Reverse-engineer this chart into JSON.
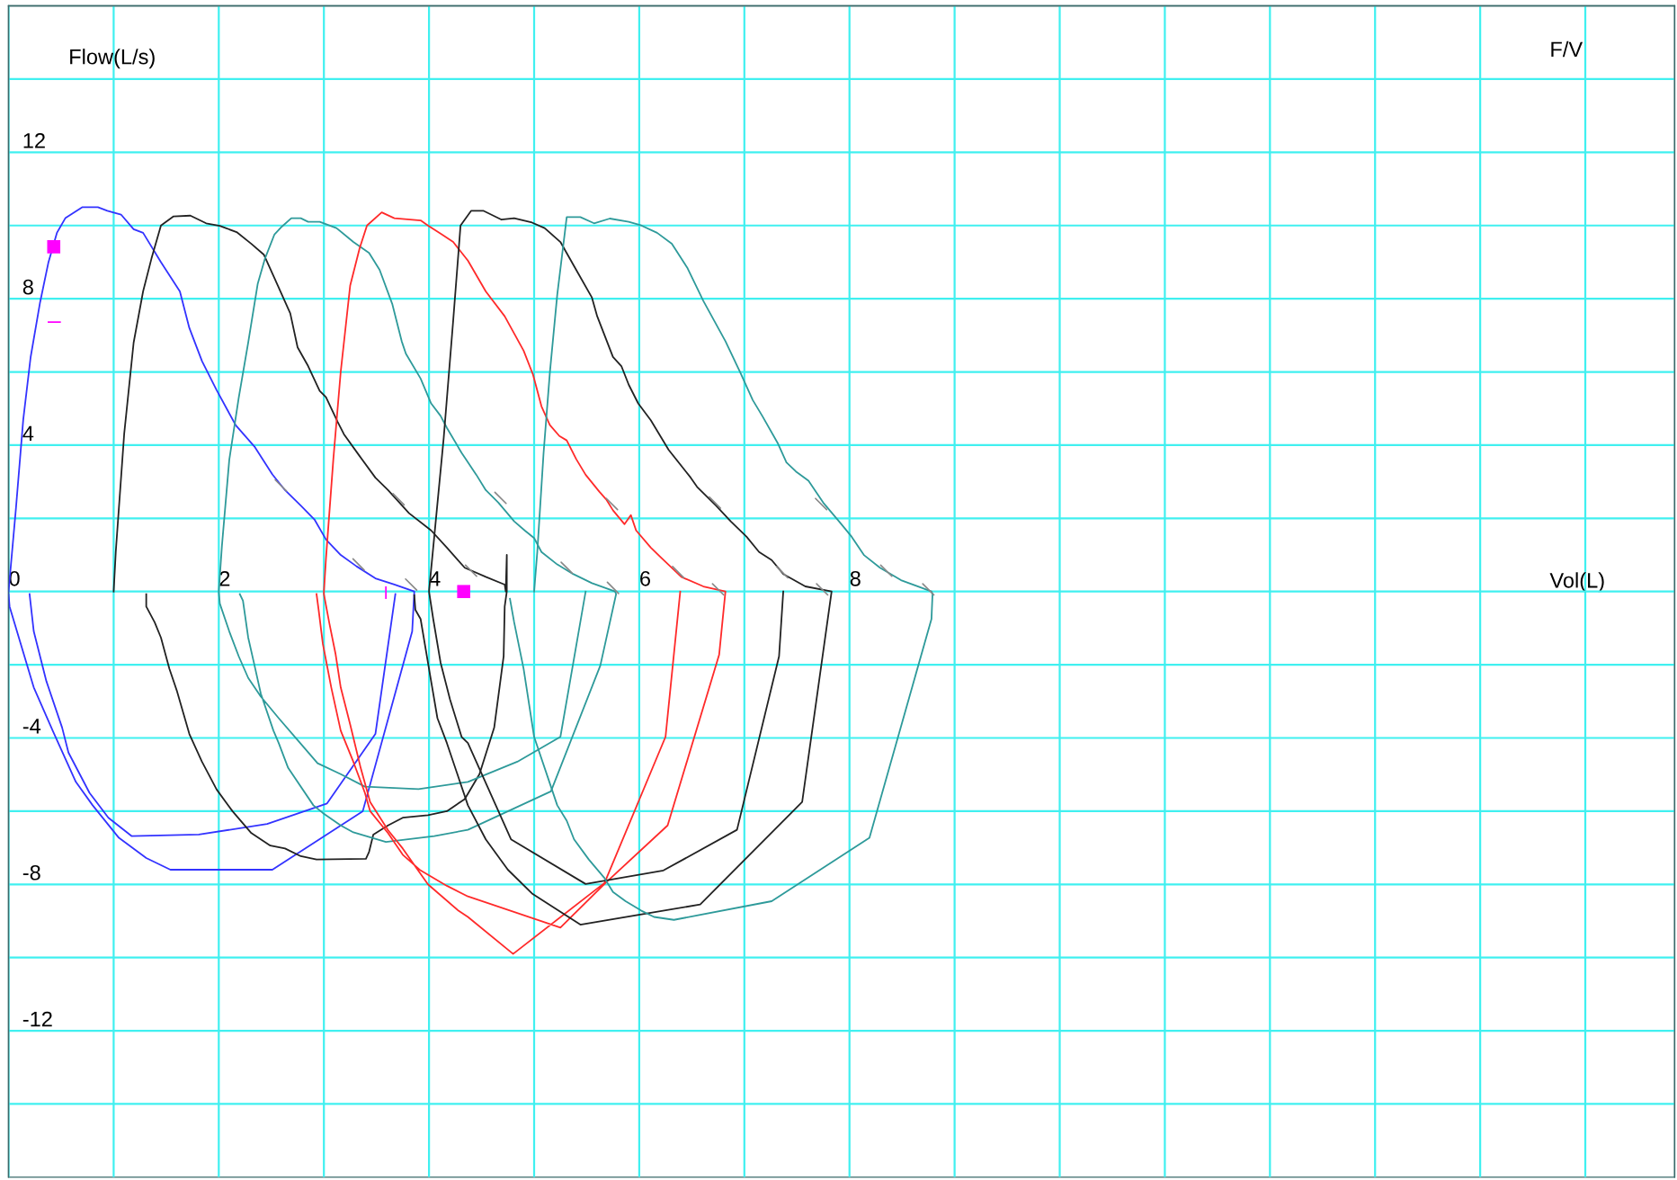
{
  "chart_data": {
    "type": "line",
    "title": "F/V",
    "xlabel": "Vol(L)",
    "ylabel": "Flow(L/s)",
    "xlim": [
      0,
      15.85
    ],
    "ylim": [
      -16,
      16
    ],
    "xticks": [
      0,
      {
        "value": 1,
        "label": null
      },
      2,
      {
        "value": 3,
        "label": null
      },
      4,
      {
        "value": 5,
        "label": null
      },
      6,
      {
        "value": 7,
        "label": null
      },
      8,
      {
        "value": 9,
        "label": null
      },
      {
        "value": 10,
        "label": null
      },
      {
        "value": 11,
        "label": null
      },
      {
        "value": 12,
        "label": null
      },
      {
        "value": 13,
        "label": null
      },
      {
        "value": 14,
        "label": null
      },
      {
        "value": 15,
        "label": null
      }
    ],
    "yticks": [
      {
        "value": -14,
        "label": null
      },
      {
        "value": -12,
        "label": "-12"
      },
      {
        "value": -10,
        "label": null
      },
      {
        "value": -8,
        "label": "-8"
      },
      {
        "value": -6,
        "label": null
      },
      {
        "value": -4,
        "label": "-4"
      },
      {
        "value": -2,
        "label": null
      },
      {
        "value": 0,
        "label": null
      },
      {
        "value": 2,
        "label": null
      },
      4,
      {
        "value": 6,
        "label": null
      },
      8,
      {
        "value": 10,
        "label": null
      },
      12,
      {
        "value": 14,
        "label": null
      }
    ],
    "grid": true,
    "line_style": "solid",
    "marker": "none",
    "series": [
      {
        "color": "#3333ff",
        "x": [
          0,
          0.07,
          0.14,
          0.21,
          0.3,
          0.38,
          0.46,
          0.54,
          0.7,
          0.85,
          0.94,
          1.07,
          1.19,
          1.28,
          1.45,
          1.63,
          1.72,
          1.84,
          1.98,
          2.16,
          2.34,
          2.51,
          2.63,
          2.78,
          2.91,
          3.02,
          3.16,
          3.31,
          3.49,
          3.67,
          3.86,
          3.84,
          3.37,
          2.51,
          1.54,
          1.31,
          1.05,
          0.8,
          0.64,
          0.42,
          0.24,
          0.01,
          0
        ],
        "values": [
          0,
          2.26,
          4.7,
          6.4,
          7.9,
          9.0,
          9.8,
          10.2,
          10.5,
          10.5,
          10.4,
          10.3,
          9.9,
          9.8,
          9.0,
          8.2,
          7.2,
          6.3,
          5.5,
          4.55,
          3.96,
          3.2,
          2.77,
          2.35,
          1.97,
          1.42,
          1.0,
          0.69,
          0.36,
          0.19,
          0,
          -1.09,
          -6.0,
          -7.6,
          -7.6,
          -7.28,
          -6.73,
          -5.84,
          -5.2,
          -3.8,
          -2.62,
          -0.41,
          -0.07
        ]
      },
      {
        "color": "#3333ff",
        "x": [
          0.2,
          0.24,
          0.36,
          0.51,
          0.57,
          0.77,
          0.95,
          1.17,
          1.81,
          2.46,
          3.03,
          3.49,
          3.68
        ],
        "values": [
          -0.07,
          -1.09,
          -2.45,
          -3.72,
          -4.4,
          -5.5,
          -6.18,
          -6.68,
          -6.64,
          -6.35,
          -5.79,
          -3.89,
          -0.07
        ]
      },
      {
        "color": "#222222",
        "x": [
          1.0,
          1.02,
          1.1,
          1.19,
          1.28,
          1.36,
          1.45,
          1.57,
          1.73,
          1.88,
          2.01,
          2.17,
          2.31,
          2.43,
          2.54,
          2.68,
          2.75,
          2.85,
          2.96,
          3.02,
          3.13,
          3.19,
          3.34,
          3.49,
          3.61,
          3.81,
          4.02,
          4.17,
          4.34,
          4.54,
          4.72,
          4.73,
          4.74,
          4.74,
          4.72,
          4.71,
          4.62,
          4.48,
          4.34,
          4.17,
          3.99,
          3.75,
          3.61,
          3.47,
          3.43,
          3.4,
          2.93,
          2.78,
          2.63,
          2.49,
          2.31,
          2.13,
          1.98,
          1.84,
          1.72,
          1.6,
          1.53,
          1.45,
          1.39,
          1.31,
          1.31
        ],
        "values": [
          0,
          1.08,
          4.3,
          6.8,
          8.2,
          9.1,
          10.0,
          10.25,
          10.27,
          10.06,
          9.99,
          9.82,
          9.5,
          9.2,
          8.5,
          7.6,
          6.67,
          6.16,
          5.48,
          5.31,
          4.64,
          4.3,
          3.7,
          3.11,
          2.77,
          2.14,
          1.67,
          1.2,
          0.65,
          0.4,
          0.19,
          0,
          1.0,
          0,
          -0.41,
          -1.77,
          -3.72,
          -4.99,
          -5.67,
          -6.0,
          -6.11,
          -6.18,
          -6.39,
          -6.64,
          -7.11,
          -7.3,
          -7.32,
          -7.23,
          -7.02,
          -6.94,
          -6.6,
          -6.0,
          -5.41,
          -4.65,
          -3.89,
          -2.7,
          -2.11,
          -1.26,
          -0.84,
          -0.41,
          -0.07
        ]
      },
      {
        "color": "#2e9a9a",
        "x": [
          5.49,
          5.25,
          4.84,
          4.37,
          3.9,
          3.39,
          3.16,
          2.94,
          2.75,
          2.57,
          2.4,
          2.28,
          2.19,
          2.1,
          2.01,
          2.0,
          2.03,
          2.1,
          2.19,
          2.28,
          2.37,
          2.44,
          2.53,
          2.6,
          2.69,
          2.78,
          2.85,
          2.96,
          3.12,
          3.28,
          3.43,
          3.53,
          3.65,
          3.74,
          3.78,
          3.92,
          4.02,
          4.11,
          4.17,
          4.31,
          4.45,
          4.54,
          4.66,
          4.81,
          4.91,
          5.0,
          5.07,
          5.22,
          5.37,
          5.55,
          5.77,
          5.78,
          5.63,
          5.16,
          4.37,
          4.05,
          3.59,
          3.28,
          3.16,
          2.99,
          2.9,
          2.66,
          2.57,
          2.52,
          2.4,
          2.34,
          2.28,
          2.23,
          2.2
        ],
        "values": [
          0,
          -3.97,
          -4.65,
          -5.2,
          -5.4,
          -5.33,
          -4.99,
          -4.69,
          -4.06,
          -3.46,
          -2.87,
          -2.36,
          -1.77,
          -1.09,
          -0.33,
          0,
          1.25,
          3.6,
          5.3,
          6.8,
          8.4,
          9.1,
          9.76,
          9.97,
          10.2,
          10.2,
          10.1,
          10.1,
          9.93,
          9.55,
          9.25,
          8.79,
          7.86,
          6.84,
          6.5,
          5.82,
          5.14,
          4.8,
          4.47,
          3.79,
          3.19,
          2.77,
          2.43,
          1.92,
          1.67,
          1.46,
          1.08,
          0.74,
          0.48,
          0.23,
          0,
          -0.07,
          -2.02,
          -5.46,
          -6.51,
          -6.68,
          -6.84,
          -6.58,
          -6.39,
          -6.05,
          -5.84,
          -4.82,
          -4.14,
          -3.8,
          -2.79,
          -2.02,
          -1.26,
          -0.25,
          -0.07
        ]
      },
      {
        "color": "#ff2a2a",
        "x": [
          6.39,
          6.25,
          5.67,
          4.8,
          4.37,
          4.28,
          3.99,
          3.75,
          3.61,
          3.44,
          3.35,
          3.25,
          3.16,
          3.11,
          3.05,
          3.0,
          3.0,
          3.02,
          3.09,
          3.16,
          3.25,
          3.34,
          3.41,
          3.55,
          3.67,
          3.92,
          3.99,
          4.12,
          4.23,
          4.37,
          4.54,
          4.72,
          4.9,
          4.99,
          5.07,
          5.15,
          5.24,
          5.31,
          5.4,
          5.49,
          5.62,
          5.69,
          5.75,
          5.86,
          5.92,
          5.97,
          6.11,
          6.2,
          6.4,
          6.61,
          6.82,
          6.76,
          6.27,
          5.68,
          5.25,
          4.37,
          4.17,
          3.92,
          3.75,
          3.61,
          3.44,
          3.39,
          3.28,
          3.16,
          3.07,
          2.99,
          2.95,
          2.93
        ],
        "values": [
          0,
          -3.97,
          -7.96,
          -9.9,
          -8.89,
          -8.72,
          -8.0,
          -7.02,
          -6.52,
          -5.75,
          -4.82,
          -3.63,
          -2.62,
          -1.69,
          -0.84,
          -0.07,
          0,
          0.91,
          3.62,
          6.0,
          8.36,
          9.38,
          10.0,
          10.36,
          10.2,
          10.14,
          10.0,
          9.76,
          9.55,
          9.04,
          8.2,
          7.52,
          6.58,
          5.92,
          5.06,
          4.55,
          4.25,
          4.13,
          3.62,
          3.19,
          2.73,
          2.5,
          2.22,
          1.84,
          2.09,
          1.67,
          1.2,
          0.95,
          0.4,
          0.14,
          0,
          -1.73,
          -6.39,
          -7.96,
          -9.18,
          -8.33,
          -8.04,
          -7.62,
          -7.19,
          -6.6,
          -6.0,
          -5.5,
          -4.65,
          -3.8,
          -2.62,
          -1.43,
          -0.5,
          -0.07
        ]
      },
      {
        "color": "#222222",
        "x": [
          7.37,
          7.33,
          6.93,
          6.23,
          5.49,
          4.78,
          4.37,
          4.31,
          4.2,
          4.11,
          4.04,
          4.0,
          4.05,
          4.14,
          4.23,
          4.3,
          4.4,
          4.52,
          4.69,
          4.81,
          4.98,
          5.1,
          5.25,
          5.4,
          5.55,
          5.6,
          5.75,
          5.83,
          5.9,
          5.99,
          6.11,
          6.28,
          6.49,
          6.55,
          6.73,
          6.87,
          7.02,
          7.14,
          7.26,
          7.37,
          7.58,
          7.83,
          7.55,
          6.58,
          5.44,
          4.98,
          4.75,
          4.54,
          4.37,
          4.29,
          4.17,
          4.08,
          4.0,
          3.92,
          3.87,
          3.86
        ],
        "values": [
          0,
          -1.77,
          -6.51,
          -7.62,
          -7.99,
          -6.77,
          -4.14,
          -3.97,
          -2.95,
          -1.94,
          -0.75,
          0,
          1.5,
          4.2,
          7.4,
          10.0,
          10.4,
          10.4,
          10.16,
          10.2,
          10.08,
          9.93,
          9.55,
          8.79,
          8.03,
          7.52,
          6.41,
          6.16,
          5.65,
          5.14,
          4.68,
          3.87,
          3.11,
          2.86,
          2.35,
          1.92,
          1.5,
          1.08,
          0.86,
          0.48,
          0.14,
          0,
          -5.75,
          -8.55,
          -9.1,
          -8.25,
          -7.6,
          -6.77,
          -5.84,
          -5.16,
          -4.14,
          -3.46,
          -2.11,
          -0.75,
          -0.5,
          -0.1
        ]
      },
      {
        "color": "#2e9a9a",
        "x": [
          5.0,
          5.03,
          5.09,
          5.15,
          5.22,
          5.31,
          5.44,
          5.57,
          5.72,
          5.9,
          6.02,
          6.17,
          6.31,
          6.46,
          6.61,
          6.82,
          6.96,
          7.08,
          7.17,
          7.32,
          7.4,
          7.49,
          7.61,
          7.75,
          7.9,
          8.02,
          8.14,
          8.29,
          8.49,
          8.78,
          8.79,
          8.78,
          8.19,
          7.26,
          6.33,
          6.14,
          6.02,
          5.87,
          5.75,
          5.67,
          5.52,
          5.38,
          5.31,
          5.22,
          5.16,
          5.0,
          4.9,
          4.81,
          4.77
        ],
        "values": [
          0,
          1.08,
          3.79,
          5.99,
          8.11,
          10.23,
          10.23,
          10.06,
          10.19,
          10.1,
          10.0,
          9.8,
          9.5,
          8.83,
          7.94,
          6.84,
          5.99,
          5.23,
          4.8,
          4.04,
          3.53,
          3.28,
          3.03,
          2.43,
          1.92,
          1.5,
          0.99,
          0.65,
          0.31,
          0,
          -0.07,
          -0.75,
          -6.73,
          -8.46,
          -8.97,
          -8.89,
          -8.72,
          -8.46,
          -8.21,
          -7.83,
          -7.32,
          -6.77,
          -6.26,
          -5.84,
          -5.33,
          -3.97,
          -2.11,
          -0.84,
          -0.2
        ]
      },
      {
        "color": "#888888",
        "type": "scatter",
        "marker": "cross",
        "x": [
          2.59,
          3.33,
          3.71,
          3.83,
          4.4,
          4.68,
          5.31,
          5.74,
          5.75,
          6.37,
          6.72,
          6.75,
          7.36,
          7.73,
          7.74,
          8.35,
          8.75
        ],
        "values": [
          2.9,
          0.74,
          2.52,
          0.19,
          0.57,
          2.56,
          0.65,
          2.39,
          0.1,
          0.53,
          2.43,
          0.06,
          0.53,
          2.39,
          0.06,
          0.57,
          0.06
        ]
      },
      {
        "color": "#ff00ff",
        "type": "scatter",
        "marker": "square",
        "x": [
          0.43,
          4.33
        ],
        "values": [
          9.42,
          0
        ]
      },
      {
        "color": "#ff00ff",
        "x": [
          0.38,
          0.49
        ],
        "values": [
          7.36,
          7.36
        ]
      },
      {
        "color": "#ff00ff",
        "x": [
          3.59,
          3.59
        ],
        "values": [
          0.12,
          -0.18
        ]
      }
    ]
  }
}
